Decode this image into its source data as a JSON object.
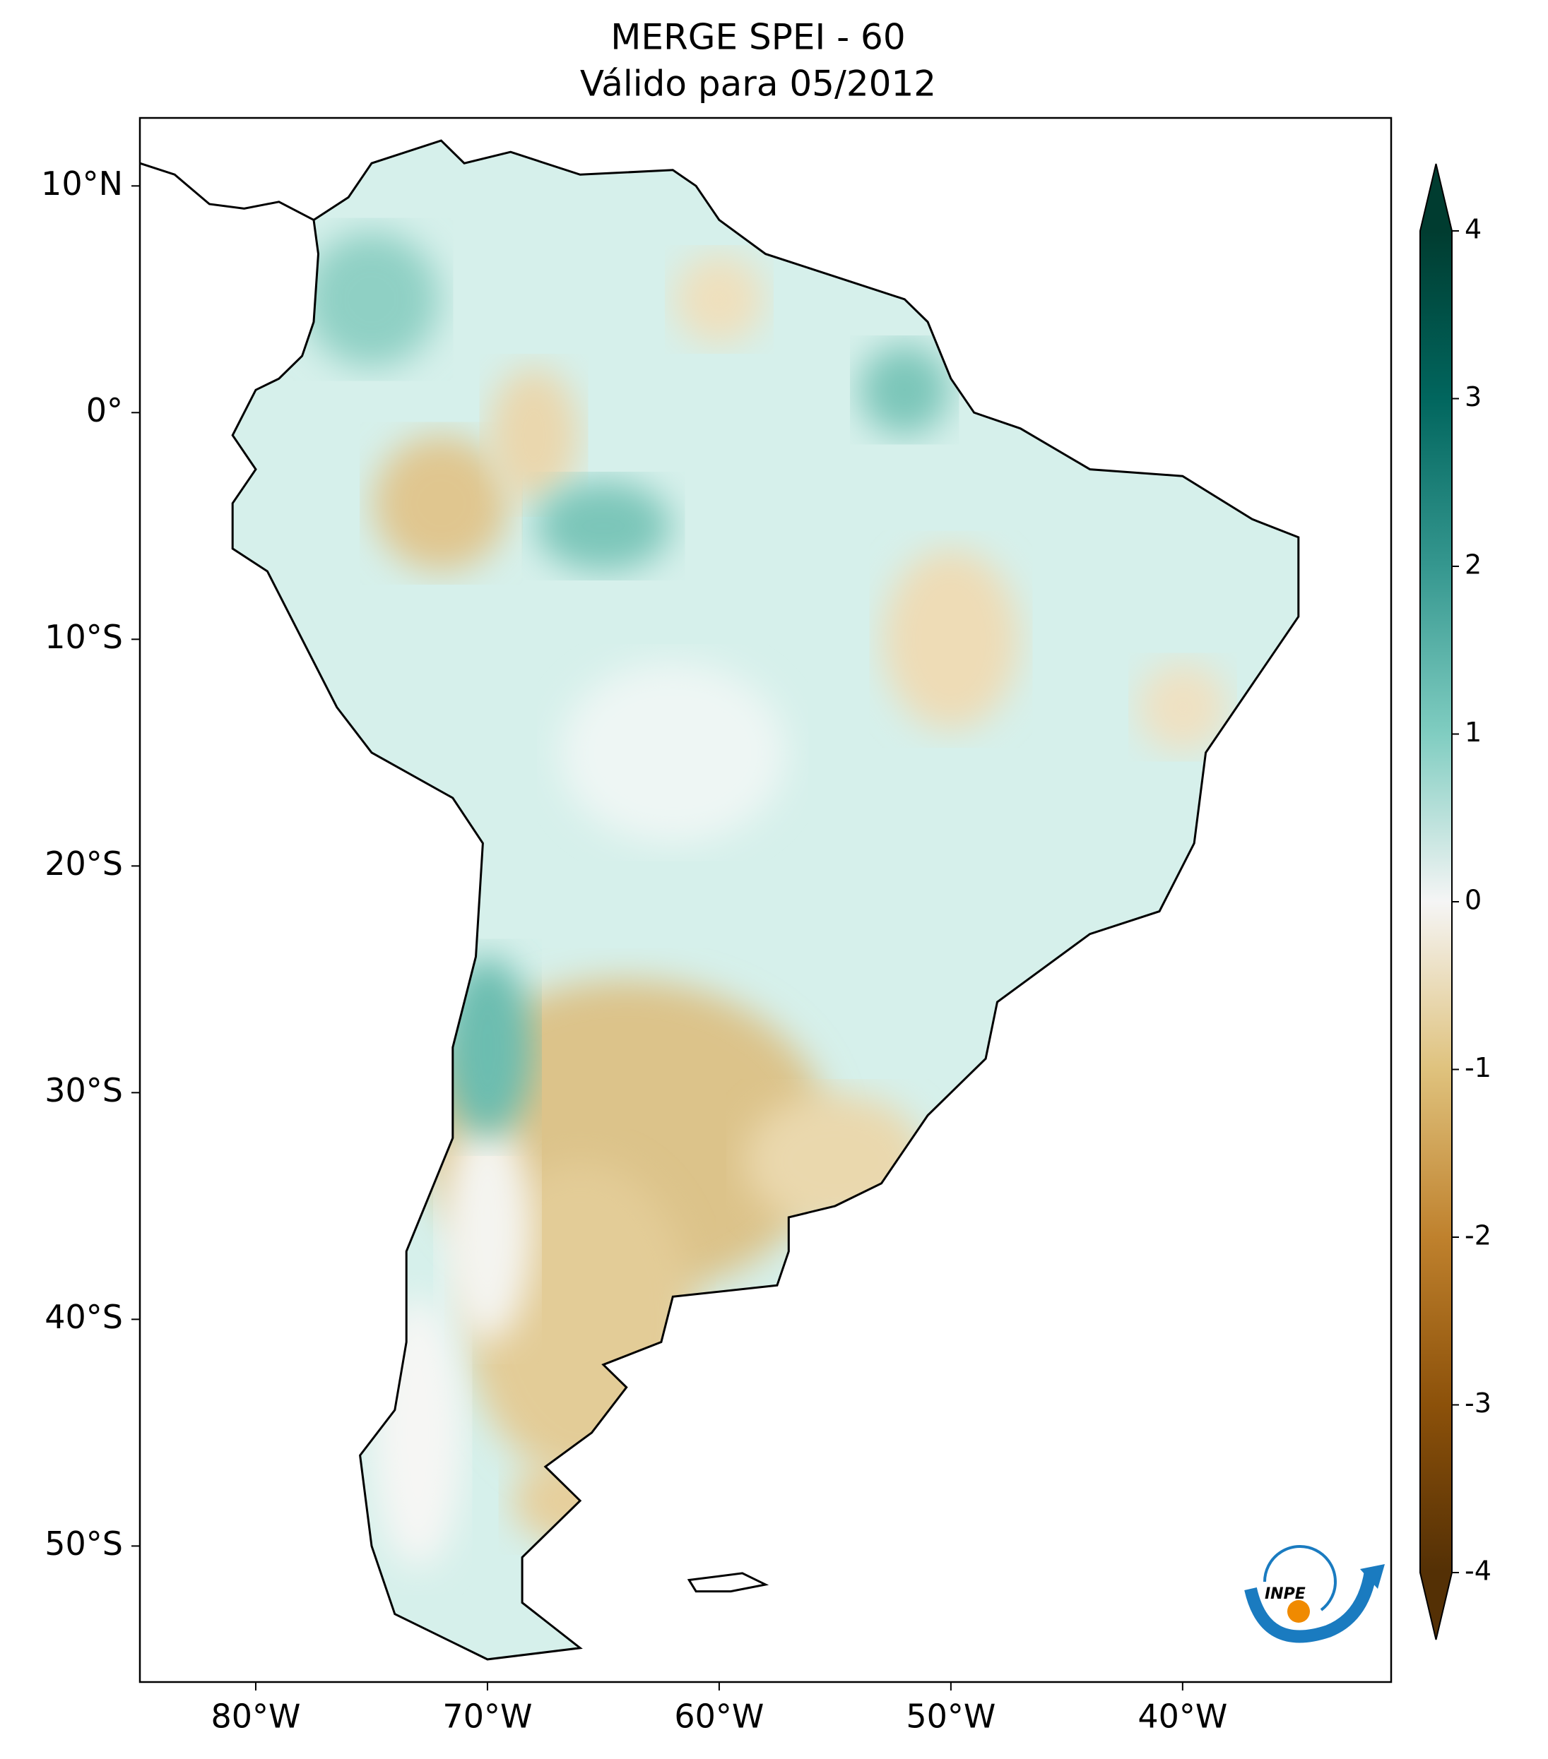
{
  "map": {
    "title": "MERGE   SPEI - 60",
    "subtitle": "Válido para 05/2012",
    "xlim": [
      -85,
      -31
    ],
    "ylim": [
      -56,
      13
    ],
    "xticks": [
      {
        "value": -80,
        "label": "80°W"
      },
      {
        "value": -70,
        "label": "70°W"
      },
      {
        "value": -60,
        "label": "60°W"
      },
      {
        "value": -50,
        "label": "50°W"
      },
      {
        "value": -40,
        "label": "40°W"
      }
    ],
    "yticks": [
      {
        "value": 10,
        "label": "10°N"
      },
      {
        "value": 0,
        "label": "0°"
      },
      {
        "value": -10,
        "label": "10°S"
      },
      {
        "value": -20,
        "label": "20°S"
      },
      {
        "value": -30,
        "label": "30°S"
      },
      {
        "value": -40,
        "label": "40°S"
      },
      {
        "value": -50,
        "label": "50°S"
      }
    ],
    "colorbar": {
      "lim": [
        -4,
        4
      ],
      "ticks": [
        4,
        3,
        2,
        1,
        0,
        -1,
        -2,
        -3,
        -4
      ],
      "colormap": "BrBG"
    },
    "logo": "INPE"
  }
}
